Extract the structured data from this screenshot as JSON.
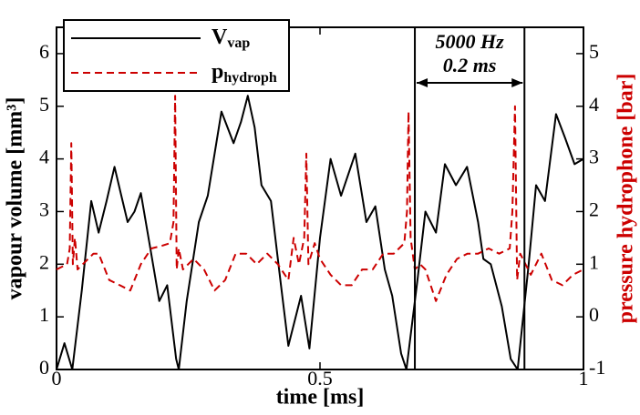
{
  "chart_data": {
    "type": "line",
    "x_label": "time [ms]",
    "y_label": "vapour volume [mm³]",
    "y2_label": "pressure hydrophone [bar]",
    "xlim": [
      0,
      1
    ],
    "xticks": [
      0,
      0.5,
      1
    ],
    "ylim": [
      0,
      6.5
    ],
    "yticks": [
      0,
      1,
      2,
      3,
      4,
      5,
      6
    ],
    "y2lim": [
      -1,
      5.5
    ],
    "y2ticks": [
      -1,
      0,
      1,
      2,
      3,
      4,
      5
    ],
    "legend": "top-left",
    "annotations": [
      "5000 Hz",
      "0.2 ms"
    ],
    "vlines": [
      0.68,
      0.888
    ],
    "series": [
      {
        "name": "V",
        "subscript": "vap",
        "color": "#000000",
        "dash": "solid",
        "x": [
          0,
          0.015,
          0.03,
          0.048,
          0.066,
          0.08,
          0.095,
          0.11,
          0.123,
          0.135,
          0.148,
          0.16,
          0.178,
          0.195,
          0.21,
          0.227,
          0.232,
          0.247,
          0.27,
          0.287,
          0.3,
          0.313,
          0.336,
          0.35,
          0.363,
          0.376,
          0.389,
          0.407,
          0.426,
          0.44,
          0.464,
          0.48,
          0.5,
          0.52,
          0.54,
          0.567,
          0.588,
          0.605,
          0.623,
          0.637,
          0.654,
          0.664,
          0.685,
          0.7,
          0.72,
          0.737,
          0.758,
          0.779,
          0.8,
          0.81,
          0.824,
          0.845,
          0.862,
          0.875,
          0.896,
          0.91,
          0.927,
          0.948,
          0.965,
          0.983,
          1.0
        ],
        "values": [
          0,
          0.5,
          0,
          1.5,
          3.2,
          2.6,
          3.2,
          3.85,
          3.3,
          2.8,
          3.0,
          3.35,
          2.3,
          1.3,
          1.6,
          0.2,
          0,
          1.3,
          2.8,
          3.3,
          4.1,
          4.9,
          4.3,
          4.7,
          5.2,
          4.6,
          3.5,
          3.2,
          1.6,
          0.45,
          1.4,
          0.4,
          2.5,
          4.0,
          3.3,
          4.1,
          2.8,
          3.1,
          1.9,
          1.4,
          0.3,
          0,
          1.7,
          3.0,
          2.6,
          3.9,
          3.5,
          3.85,
          2.8,
          2.1,
          2.0,
          1.2,
          0.2,
          0,
          2.0,
          3.5,
          3.2,
          4.85,
          4.4,
          3.9,
          4.0
        ]
      },
      {
        "name": "p",
        "subscript": "hydroph",
        "color": "#cc0000",
        "dash": "dashed",
        "axis": "y2",
        "x": [
          0,
          0.02,
          0.025,
          0.028,
          0.031,
          0.035,
          0.04,
          0.06,
          0.07,
          0.08,
          0.1,
          0.12,
          0.14,
          0.16,
          0.18,
          0.2,
          0.215,
          0.222,
          0.225,
          0.228,
          0.232,
          0.24,
          0.26,
          0.28,
          0.3,
          0.32,
          0.34,
          0.36,
          0.38,
          0.4,
          0.42,
          0.44,
          0.45,
          0.46,
          0.47,
          0.474,
          0.478,
          0.49,
          0.5,
          0.52,
          0.54,
          0.56,
          0.58,
          0.6,
          0.62,
          0.64,
          0.66,
          0.665,
          0.668,
          0.672,
          0.68,
          0.69,
          0.7,
          0.72,
          0.74,
          0.76,
          0.78,
          0.8,
          0.82,
          0.84,
          0.86,
          0.865,
          0.87,
          0.874,
          0.88,
          0.9,
          0.92,
          0.94,
          0.96,
          0.98,
          1.0
        ],
        "values": [
          0.9,
          1.0,
          1.3,
          3.3,
          1.0,
          1.5,
          0.9,
          1.1,
          1.2,
          1.2,
          0.7,
          0.6,
          0.5,
          1.0,
          1.3,
          1.35,
          1.4,
          1.8,
          4.2,
          0.9,
          1.3,
          0.9,
          1.1,
          0.9,
          0.5,
          0.7,
          1.2,
          1.2,
          1.0,
          1.2,
          1.0,
          0.7,
          1.5,
          1.0,
          1.5,
          3.1,
          1.0,
          1.4,
          1.1,
          0.8,
          0.6,
          0.6,
          0.9,
          0.9,
          1.2,
          1.2,
          1.4,
          2.0,
          3.9,
          1.5,
          0.9,
          1.0,
          0.9,
          0.3,
          0.8,
          1.1,
          1.2,
          1.2,
          1.3,
          1.2,
          1.3,
          2.0,
          4.0,
          0.7,
          1.2,
          0.8,
          1.2,
          0.7,
          0.6,
          0.8,
          0.9
        ]
      }
    ]
  }
}
